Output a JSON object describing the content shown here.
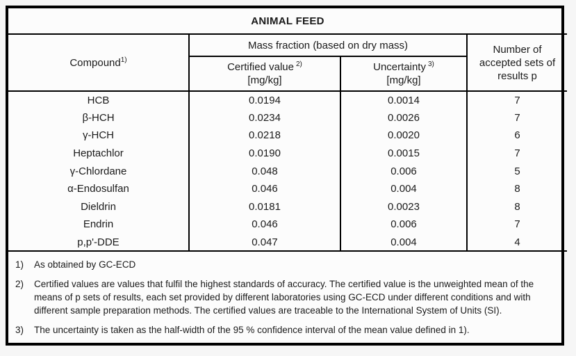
{
  "title": "ANIMAL FEED",
  "table": {
    "compound_header": {
      "label": "Compound",
      "sup": "1)"
    },
    "mass_fraction_header": "Mass fraction (based on dry mass)",
    "certified_header": {
      "label": "Certified value",
      "sup": "2)",
      "unit": "[mg/kg]"
    },
    "uncertainty_header": {
      "label": "Uncertainty",
      "sup": "3)",
      "unit": "[mg/kg]"
    },
    "results_header": "Number of accepted sets of results p",
    "rows": [
      {
        "compound": "HCB",
        "certified": "0.0194",
        "uncertainty": "0.0014",
        "p": "7"
      },
      {
        "compound": "β-HCH",
        "certified": "0.0234",
        "uncertainty": "0.0026",
        "p": "7"
      },
      {
        "compound": "γ-HCH",
        "certified": "0.0218",
        "uncertainty": "0.0020",
        "p": "6"
      },
      {
        "compound": "Heptachlor",
        "certified": "0.0190",
        "uncertainty": "0.0015",
        "p": "7"
      },
      {
        "compound": "γ-Chlordane",
        "certified": "0.048",
        "uncertainty": "0.006",
        "p": "5"
      },
      {
        "compound": "α-Endosulfan",
        "certified": "0.046",
        "uncertainty": "0.004",
        "p": "8"
      },
      {
        "compound": "Dieldrin",
        "certified": "0.0181",
        "uncertainty": "0.0023",
        "p": "8"
      },
      {
        "compound": "Endrin",
        "certified": "0.046",
        "uncertainty": "0.006",
        "p": "7"
      },
      {
        "compound": "p,p'-DDE",
        "certified": "0.047",
        "uncertainty": "0.004",
        "p": "4"
      }
    ]
  },
  "footnotes": [
    {
      "marker": "1)",
      "text": "As obtained by GC-ECD"
    },
    {
      "marker": "2)",
      "text": "Certified values are values that fulfil the highest standards of accuracy. The certified value is the unweighted mean of the means of p sets of results, each set provided by different laboratories using GC-ECD under different conditions and with different sample preparation methods. The certified values are traceable to the International System of Units (SI)."
    },
    {
      "marker": "3)",
      "text": "The uncertainty is taken as the half-width of the 95 % confidence interval of the mean value defined in 1)."
    }
  ],
  "colors": {
    "border": "#000000",
    "text": "#1a1a1a",
    "table_background": "#fcfcfc",
    "page_background": "#f6f6f6"
  }
}
